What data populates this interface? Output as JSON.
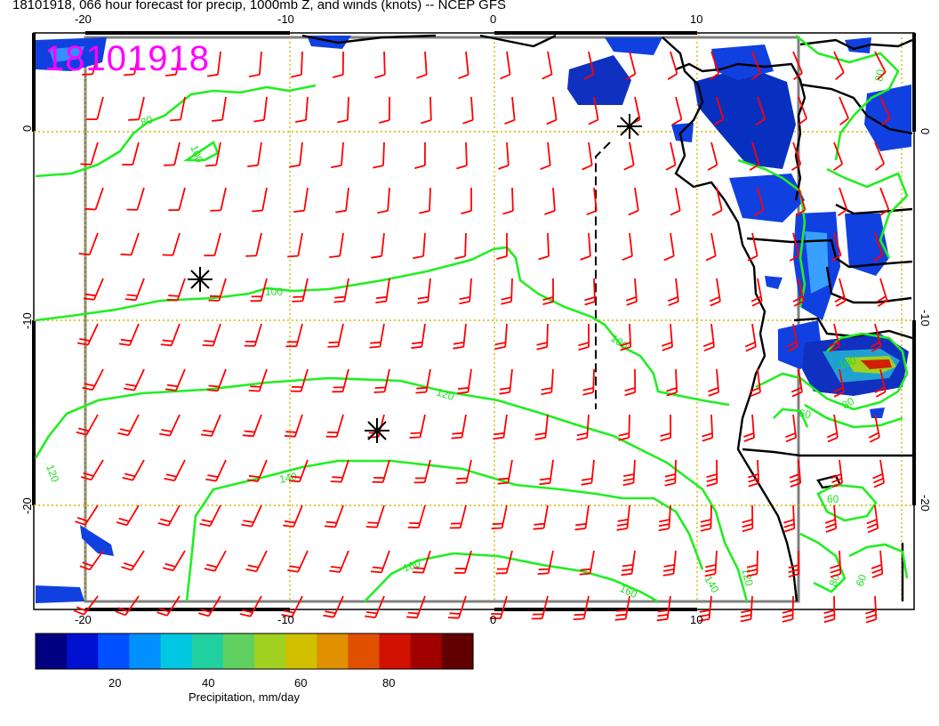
{
  "title": "18101918, 066 hour forecast for precip, 1000mb Z, and winds (knots) -- NCEP GFS",
  "stamp": "18101918",
  "x_ticks_top": [
    "-20",
    "-10",
    "0",
    "10"
  ],
  "x_ticks_bottom": [
    "-20",
    "-10",
    "0",
    "10"
  ],
  "y_ticks_left": [
    "0",
    "-10",
    "-20"
  ],
  "y_ticks_right": [
    "0",
    "-10",
    "-20"
  ],
  "contour_labels": [
    "80",
    "100",
    "100",
    "100",
    "120",
    "120",
    "140",
    "160",
    "160",
    "140",
    "120",
    "80",
    "60",
    "80",
    "60",
    "80",
    "100",
    "60"
  ],
  "colorbar": {
    "title": "Precipitation, mm/day",
    "ticks": [
      "20",
      "40",
      "60",
      "80"
    ],
    "colors": [
      "#000080",
      "#0010d0",
      "#0050ff",
      "#0090ff",
      "#00c8e0",
      "#20d0a0",
      "#60d060",
      "#a0d020",
      "#d0c000",
      "#e09000",
      "#e05000",
      "#d01000",
      "#a00000",
      "#600000"
    ]
  },
  "colors": {
    "wind": "#ff0000",
    "contour": "#22ee22",
    "grid": "#d0c000",
    "stamp": "#ff00ff"
  }
}
